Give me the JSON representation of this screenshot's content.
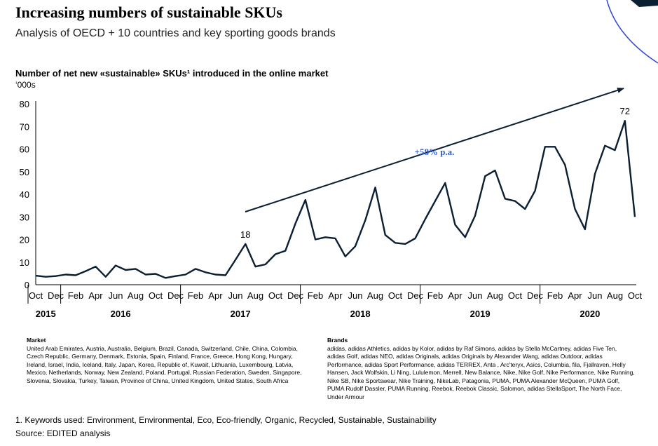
{
  "header": {
    "title": "Increasing numbers of sustainable SKUs",
    "subtitle": "Analysis of OECD + 10 countries and key sporting goods brands"
  },
  "chart_data": {
    "type": "line",
    "title": "Number of net new «sustainable» SKUs¹ introduced in the online market",
    "ylabel": "‘000s",
    "xlabel": "",
    "ylim": [
      0,
      80
    ],
    "yticks": [
      0,
      10,
      20,
      30,
      40,
      50,
      60,
      70,
      80
    ],
    "grid": false,
    "x_tick_labels": [
      "Oct",
      "Dec",
      "Feb",
      "Apr",
      "Jun",
      "Aug",
      "Oct",
      "Dec",
      "Feb",
      "Apr",
      "Jun",
      "Aug",
      "Oct",
      "Dec",
      "Feb",
      "Apr",
      "Jun",
      "Aug",
      "Oct",
      "Dec",
      "Feb",
      "Apr",
      "Jun",
      "Aug",
      "Oct",
      "Dec",
      "Feb",
      "Apr",
      "Jun",
      "Aug",
      "Oct"
    ],
    "years": [
      {
        "label": "2015",
        "start": 0,
        "end": 2
      },
      {
        "label": "2016",
        "start": 3,
        "end": 14
      },
      {
        "label": "2017",
        "start": 15,
        "end": 26
      },
      {
        "label": "2018",
        "start": 27,
        "end": 38
      },
      {
        "label": "2019",
        "start": 39,
        "end": 50
      },
      {
        "label": "2020",
        "start": 51,
        "end": 60
      }
    ],
    "series": [
      {
        "values": [
          4,
          3.5,
          3.8,
          4.5,
          4.2,
          6,
          8,
          3.5,
          8.5,
          6.5,
          7,
          4.5,
          4.8,
          3,
          3.8,
          4.5,
          7,
          5.5,
          4.5,
          4.2,
          11,
          18,
          8,
          9,
          13.5,
          15,
          27,
          37.5,
          20,
          21,
          20.5,
          12.5,
          17,
          28.5,
          43,
          22,
          18.5,
          18,
          20.5,
          29,
          37,
          45,
          26.5,
          21,
          30.5,
          48,
          50.5,
          38,
          37,
          33.5,
          41.5,
          61,
          61,
          53,
          33.5,
          24.5,
          49,
          61.5,
          59.5,
          72.5,
          30
        ]
      }
    ],
    "annotations": {
      "point_labels": [
        {
          "index": 21,
          "text": "18"
        },
        {
          "index": 59,
          "text": "72"
        }
      ],
      "trend_label": "+58% p.a."
    }
  },
  "notes": {
    "market_title": "Market",
    "market_text": "United Arab Emirates, Austria, Australia, Belgium, Brazil, Canada, Switzerland, Chile, China, Colombia, Czech Republic, Germany, Denmark, Estonia, Spain, Finland, France, Greece, Hong Kong, Hungary, Ireland, Israel, India, Iceland, Italy, Japan, Korea, Republic of, Kuwait, Lithuania, Luxembourg, Latvia, Mexico, Netherlands, Norway, New Zealand, Poland, Portugal, Russian Federation, Sweden, Singapore, Slovenia, Slovakia, Turkey, Taiwan, Province of China, United Kingdom, United States, South Africa",
    "brands_title": "Brands",
    "brands_text": "adidas, adidas Athletics, adidas by Kolor, adidas by Raf Simons, adidas by Stella McCartney, adidas Five Ten, adidas Golf, adidas NEO, adidas Originals, adidas Originals by Alexander Wang, adidas Outdoor, adidas Performance, adidas Sport Performance, adidas TERREX, Anta , Arc'teryx, Asics, Columbia, fila, Fjallraven, Helly Hansen, Jack Wolfskin, Li Ning, Lululemon, Merrell, New Balance, Nike, Nike Golf, Nike Performance, Nike Running, Nike SB, Nike Sportswear, Nike Training, NikeLab, Patagonia, PUMA, PUMA Alexander McQueen, PUMA Golf, PUMA Rudolf Dassler, PUMA Running, Reebok, Reebok Classic, Salomon, adidas StellaSport, The North Face, Under Armour"
  },
  "footer": {
    "footnote": "1.   Keywords used: Environment, Environmental, Eco, Eco-friendly, Organic, Recycled, Sustainable, Sustainability",
    "source": "Source: EDITED analysis"
  },
  "colors": {
    "line": "#0b1f33",
    "arrow": "#0b1f33",
    "trend_label": "#2f5ecf",
    "corner_arc": "#2f45d8",
    "corner_shape": "#0b1f33"
  }
}
